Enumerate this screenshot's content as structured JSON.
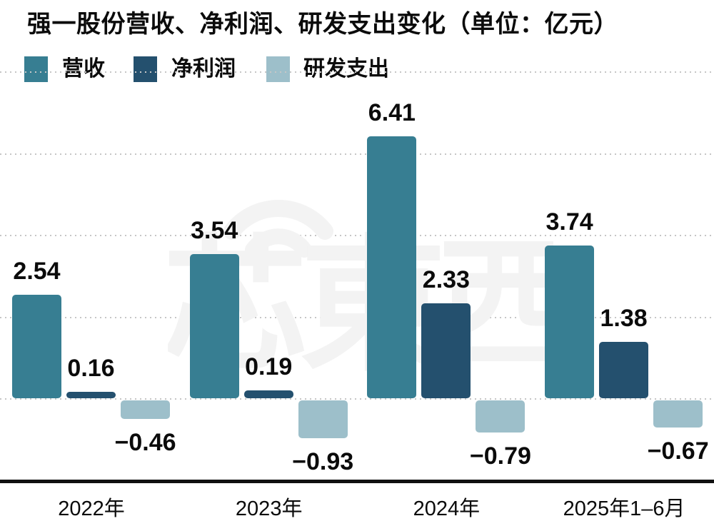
{
  "title": "强一股份营收、净利润、研发支出变化（单位：亿元）",
  "legend": {
    "items": [
      {
        "label": "营收",
        "color": "#377e92"
      },
      {
        "label": "净利润",
        "color": "#24506e"
      },
      {
        "label": "研发支出",
        "color": "#9dbfca"
      }
    ]
  },
  "watermark": {
    "text": "芯東西",
    "icon": "wifi-arcs-icon",
    "color": "#f3f3f3"
  },
  "chart_data": {
    "type": "bar",
    "title": "强一股份营收、净利润、研发支出变化（单位：亿元）",
    "unit": "亿元",
    "categories": [
      "2022年",
      "2023年",
      "2024年",
      "2025年1–6月"
    ],
    "series": [
      {
        "name": "营收",
        "color": "#377e92",
        "values": [
          2.54,
          3.54,
          6.41,
          3.74
        ],
        "labels": [
          "2.54",
          "3.54",
          "6.41",
          "3.74"
        ]
      },
      {
        "name": "净利润",
        "color": "#24506e",
        "values": [
          0.16,
          0.19,
          2.33,
          1.38
        ],
        "labels": [
          "0.16",
          "0.19",
          "2.33",
          "1.38"
        ]
      },
      {
        "name": "研发支出",
        "color": "#9dbfca",
        "values": [
          -0.46,
          -0.93,
          -0.79,
          -0.67
        ],
        "labels": [
          "−0.46",
          "−0.93",
          "−0.79",
          "−0.67"
        ]
      }
    ],
    "xlabel": "",
    "ylabel": "",
    "ylim": [
      -1.4,
      8.2
    ],
    "gridline_values": [
      0,
      2,
      4,
      6,
      8
    ],
    "grid": "horizontal-dotted",
    "legend_position": "top-left",
    "bar_value_labels": true
  },
  "colors": {
    "background": "#ffffff",
    "text": "#0b0b0b",
    "gridline": "#c6c6c6",
    "axis_line": "#111111",
    "watermark": "#f3f3f3"
  }
}
